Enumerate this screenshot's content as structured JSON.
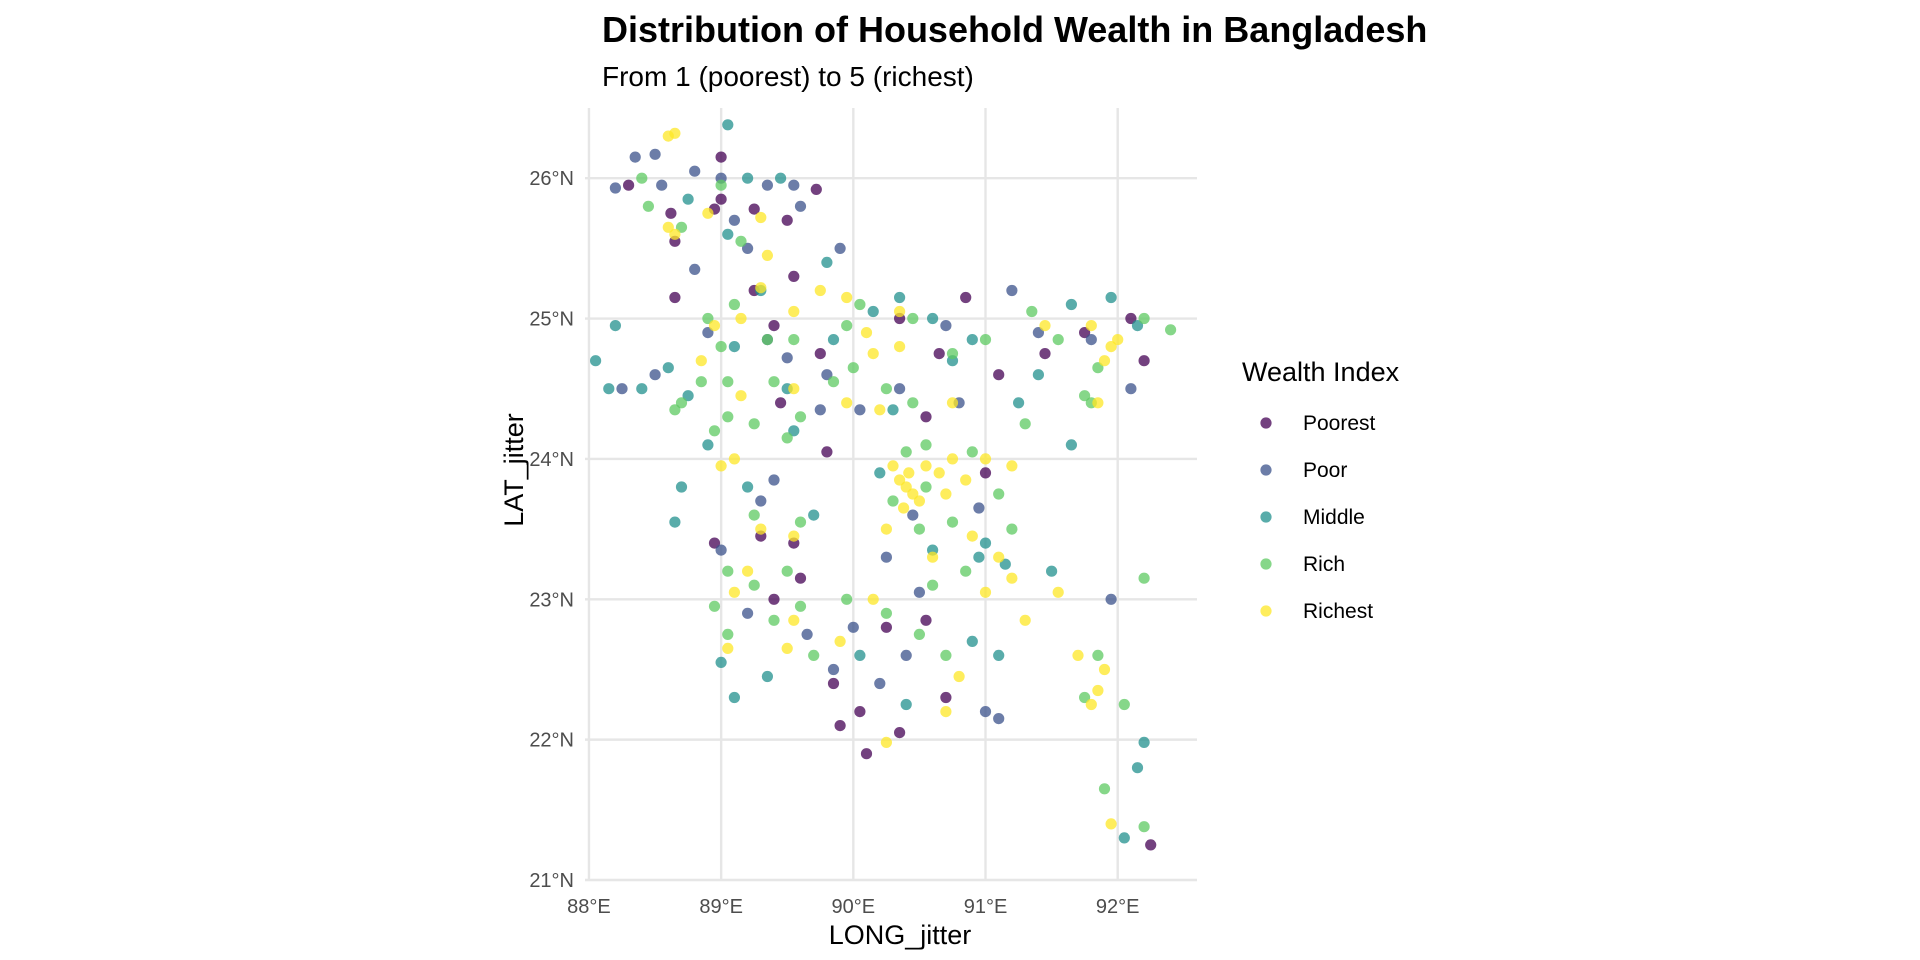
{
  "chart_data": {
    "type": "scatter",
    "title": "Distribution of Household Wealth in Bangladesh",
    "subtitle": "From 1 (poorest) to 5 (richest)",
    "xlabel": "LONG_jitter",
    "ylabel": "LAT_jitter",
    "xlim": [
      87.97,
      92.6
    ],
    "ylim": [
      21.0,
      26.5
    ],
    "x_ticks": [
      88,
      89,
      90,
      91,
      92
    ],
    "x_tick_labels": [
      "88°E",
      "89°E",
      "90°E",
      "91°E",
      "92°E"
    ],
    "y_ticks": [
      21,
      22,
      23,
      24,
      25,
      26
    ],
    "y_tick_labels": [
      "21°N",
      "22°N",
      "23°N",
      "24°N",
      "25°N",
      "26°N"
    ],
    "grid": true,
    "legend_title": "Wealth Index",
    "legend_position": "right",
    "series": [
      {
        "name": "Poorest",
        "color": "#440154",
        "points": [
          [
            88.3,
            25.95
          ],
          [
            88.62,
            25.75
          ],
          [
            88.65,
            25.55
          ],
          [
            88.65,
            25.15
          ],
          [
            88.95,
            25.78
          ],
          [
            89.0,
            26.15
          ],
          [
            89.0,
            25.85
          ],
          [
            89.25,
            25.78
          ],
          [
            89.5,
            25.7
          ],
          [
            89.72,
            25.92
          ],
          [
            89.25,
            25.2
          ],
          [
            89.4,
            24.95
          ],
          [
            89.45,
            24.4
          ],
          [
            89.75,
            24.75
          ],
          [
            89.6,
            23.15
          ],
          [
            89.85,
            22.4
          ],
          [
            89.9,
            22.1
          ],
          [
            90.05,
            22.2
          ],
          [
            90.1,
            21.9
          ],
          [
            90.35,
            22.05
          ],
          [
            90.25,
            22.8
          ],
          [
            90.55,
            22.85
          ],
          [
            90.7,
            22.3
          ],
          [
            90.55,
            24.3
          ],
          [
            90.65,
            24.75
          ],
          [
            90.85,
            25.15
          ],
          [
            91.1,
            24.6
          ],
          [
            91.45,
            24.75
          ],
          [
            91.75,
            24.9
          ],
          [
            92.2,
            24.7
          ],
          [
            92.1,
            25.0
          ],
          [
            91.0,
            23.9
          ],
          [
            90.35,
            25.0
          ],
          [
            89.8,
            24.05
          ],
          [
            89.3,
            23.45
          ],
          [
            89.4,
            23.0
          ],
          [
            88.95,
            23.4
          ],
          [
            92.25,
            21.25
          ],
          [
            89.55,
            23.4
          ],
          [
            89.55,
            25.3
          ]
        ]
      },
      {
        "name": "Poor",
        "color": "#3b528b",
        "points": [
          [
            88.2,
            25.93
          ],
          [
            88.35,
            26.15
          ],
          [
            88.5,
            26.17
          ],
          [
            88.55,
            25.95
          ],
          [
            88.8,
            26.05
          ],
          [
            89.0,
            26.0
          ],
          [
            89.1,
            25.7
          ],
          [
            89.35,
            25.95
          ],
          [
            89.55,
            25.95
          ],
          [
            89.6,
            25.8
          ],
          [
            89.2,
            25.5
          ],
          [
            88.8,
            25.35
          ],
          [
            88.9,
            24.9
          ],
          [
            89.5,
            24.72
          ],
          [
            89.8,
            24.6
          ],
          [
            89.75,
            24.35
          ],
          [
            89.4,
            23.85
          ],
          [
            89.3,
            23.7
          ],
          [
            89.0,
            23.35
          ],
          [
            89.2,
            22.9
          ],
          [
            89.65,
            22.75
          ],
          [
            89.85,
            22.5
          ],
          [
            90.0,
            22.8
          ],
          [
            90.2,
            22.4
          ],
          [
            90.4,
            22.6
          ],
          [
            90.5,
            23.05
          ],
          [
            90.45,
            23.6
          ],
          [
            90.05,
            24.35
          ],
          [
            90.35,
            24.5
          ],
          [
            90.8,
            24.4
          ],
          [
            91.2,
            25.2
          ],
          [
            91.4,
            24.9
          ],
          [
            92.1,
            24.5
          ],
          [
            91.8,
            24.85
          ],
          [
            91.95,
            23.0
          ],
          [
            91.0,
            22.2
          ],
          [
            91.1,
            22.15
          ],
          [
            88.25,
            24.5
          ],
          [
            89.9,
            25.5
          ],
          [
            90.7,
            24.95
          ],
          [
            88.5,
            24.6
          ],
          [
            89.35,
            24.85
          ],
          [
            90.95,
            23.65
          ],
          [
            90.25,
            23.3
          ]
        ]
      },
      {
        "name": "Middle",
        "color": "#21908d",
        "points": [
          [
            88.05,
            24.7
          ],
          [
            88.2,
            24.95
          ],
          [
            88.15,
            24.5
          ],
          [
            88.4,
            24.5
          ],
          [
            88.6,
            24.65
          ],
          [
            88.75,
            24.45
          ],
          [
            89.05,
            26.38
          ],
          [
            89.2,
            26.0
          ],
          [
            89.45,
            26.0
          ],
          [
            88.75,
            25.85
          ],
          [
            89.05,
            25.6
          ],
          [
            89.8,
            25.4
          ],
          [
            89.3,
            25.2
          ],
          [
            89.1,
            24.8
          ],
          [
            89.5,
            24.5
          ],
          [
            89.85,
            24.85
          ],
          [
            90.15,
            25.05
          ],
          [
            90.35,
            25.15
          ],
          [
            90.75,
            24.7
          ],
          [
            90.9,
            24.85
          ],
          [
            91.4,
            24.6
          ],
          [
            91.65,
            25.1
          ],
          [
            91.95,
            25.15
          ],
          [
            92.15,
            24.95
          ],
          [
            91.65,
            24.1
          ],
          [
            91.0,
            23.4
          ],
          [
            90.95,
            23.3
          ],
          [
            91.15,
            23.25
          ],
          [
            91.5,
            23.2
          ],
          [
            90.6,
            23.35
          ],
          [
            90.2,
            23.9
          ],
          [
            89.7,
            23.6
          ],
          [
            89.2,
            23.8
          ],
          [
            88.7,
            23.8
          ],
          [
            88.65,
            23.55
          ],
          [
            89.0,
            22.55
          ],
          [
            89.1,
            22.3
          ],
          [
            89.35,
            22.45
          ],
          [
            90.05,
            22.6
          ],
          [
            90.4,
            22.25
          ],
          [
            90.9,
            22.7
          ],
          [
            91.1,
            22.6
          ],
          [
            92.15,
            21.8
          ],
          [
            92.05,
            21.3
          ],
          [
            92.2,
            21.98
          ],
          [
            90.3,
            24.35
          ],
          [
            89.55,
            24.2
          ],
          [
            88.9,
            24.1
          ],
          [
            90.6,
            25.0
          ],
          [
            91.25,
            24.4
          ]
        ]
      },
      {
        "name": "Rich",
        "color": "#5ec962",
        "points": [
          [
            88.4,
            26.0
          ],
          [
            88.45,
            25.8
          ],
          [
            88.7,
            25.65
          ],
          [
            89.0,
            25.95
          ],
          [
            89.15,
            25.55
          ],
          [
            88.65,
            24.35
          ],
          [
            88.85,
            24.55
          ],
          [
            89.0,
            24.8
          ],
          [
            88.9,
            25.0
          ],
          [
            89.1,
            25.1
          ],
          [
            89.55,
            24.85
          ],
          [
            89.35,
            24.85
          ],
          [
            89.4,
            24.55
          ],
          [
            89.5,
            24.15
          ],
          [
            89.25,
            24.25
          ],
          [
            89.05,
            24.3
          ],
          [
            88.95,
            24.2
          ],
          [
            89.25,
            23.6
          ],
          [
            89.6,
            23.55
          ],
          [
            89.5,
            23.2
          ],
          [
            89.25,
            23.1
          ],
          [
            89.05,
            23.2
          ],
          [
            88.95,
            22.95
          ],
          [
            89.05,
            22.75
          ],
          [
            89.4,
            22.85
          ],
          [
            89.6,
            22.95
          ],
          [
            89.7,
            22.6
          ],
          [
            89.95,
            23.0
          ],
          [
            90.25,
            22.9
          ],
          [
            90.5,
            22.75
          ],
          [
            90.7,
            22.6
          ],
          [
            90.6,
            23.1
          ],
          [
            90.85,
            23.2
          ],
          [
            90.75,
            23.55
          ],
          [
            90.5,
            23.5
          ],
          [
            90.4,
            24.05
          ],
          [
            90.55,
            24.1
          ],
          [
            90.9,
            24.05
          ],
          [
            90.45,
            24.4
          ],
          [
            90.25,
            24.5
          ],
          [
            89.95,
            24.95
          ],
          [
            90.45,
            25.0
          ],
          [
            91.0,
            24.85
          ],
          [
            91.35,
            25.05
          ],
          [
            91.55,
            24.85
          ],
          [
            91.75,
            24.45
          ],
          [
            91.85,
            24.65
          ],
          [
            92.2,
            25.0
          ],
          [
            92.4,
            24.92
          ],
          [
            91.8,
            24.4
          ],
          [
            91.3,
            24.25
          ],
          [
            91.1,
            23.75
          ],
          [
            91.2,
            23.5
          ],
          [
            90.75,
            24.75
          ],
          [
            89.85,
            24.55
          ],
          [
            89.05,
            24.55
          ],
          [
            91.85,
            22.6
          ],
          [
            92.05,
            22.25
          ],
          [
            91.75,
            22.3
          ],
          [
            91.9,
            21.65
          ],
          [
            92.2,
            21.38
          ],
          [
            92.2,
            23.15
          ],
          [
            90.05,
            25.1
          ],
          [
            90.55,
            23.8
          ],
          [
            90.3,
            23.7
          ],
          [
            88.7,
            24.4
          ],
          [
            90.0,
            24.65
          ],
          [
            89.6,
            24.3
          ]
        ]
      },
      {
        "name": "Richest",
        "color": "#fde725",
        "points": [
          [
            88.6,
            26.3
          ],
          [
            88.65,
            26.32
          ],
          [
            88.65,
            25.6
          ],
          [
            88.9,
            25.75
          ],
          [
            89.3,
            25.72
          ],
          [
            89.35,
            25.45
          ],
          [
            89.3,
            25.22
          ],
          [
            89.15,
            25.0
          ],
          [
            88.85,
            24.7
          ],
          [
            89.15,
            24.45
          ],
          [
            89.55,
            24.5
          ],
          [
            89.95,
            25.15
          ],
          [
            89.75,
            25.2
          ],
          [
            90.1,
            24.9
          ],
          [
            90.15,
            24.75
          ],
          [
            90.35,
            24.8
          ],
          [
            90.2,
            24.35
          ],
          [
            90.75,
            24.4
          ],
          [
            89.1,
            24.0
          ],
          [
            89.0,
            23.95
          ],
          [
            89.3,
            23.5
          ],
          [
            89.55,
            23.45
          ],
          [
            89.2,
            23.2
          ],
          [
            89.1,
            23.05
          ],
          [
            89.05,
            22.65
          ],
          [
            89.5,
            22.65
          ],
          [
            89.55,
            22.85
          ],
          [
            89.9,
            22.7
          ],
          [
            90.15,
            23.0
          ],
          [
            90.25,
            23.5
          ],
          [
            90.3,
            23.95
          ],
          [
            90.35,
            23.85
          ],
          [
            90.4,
            23.8
          ],
          [
            90.45,
            23.75
          ],
          [
            90.5,
            23.7
          ],
          [
            90.38,
            23.65
          ],
          [
            90.42,
            23.9
          ],
          [
            90.55,
            23.95
          ],
          [
            90.65,
            23.9
          ],
          [
            90.75,
            24.0
          ],
          [
            90.7,
            23.75
          ],
          [
            90.85,
            23.85
          ],
          [
            91.0,
            24.0
          ],
          [
            91.2,
            23.95
          ],
          [
            90.9,
            23.45
          ],
          [
            91.1,
            23.3
          ],
          [
            91.2,
            23.15
          ],
          [
            91.0,
            23.05
          ],
          [
            91.3,
            22.85
          ],
          [
            91.55,
            23.05
          ],
          [
            91.7,
            22.6
          ],
          [
            91.9,
            22.5
          ],
          [
            91.85,
            22.35
          ],
          [
            91.8,
            22.25
          ],
          [
            91.95,
            21.4
          ],
          [
            91.45,
            24.95
          ],
          [
            91.8,
            24.95
          ],
          [
            92.0,
            24.85
          ],
          [
            91.95,
            24.8
          ],
          [
            91.9,
            24.7
          ],
          [
            91.85,
            24.4
          ],
          [
            90.25,
            21.98
          ],
          [
            90.7,
            22.2
          ],
          [
            90.8,
            22.45
          ],
          [
            90.35,
            25.05
          ],
          [
            88.95,
            24.95
          ],
          [
            89.55,
            25.05
          ],
          [
            90.6,
            23.3
          ],
          [
            89.95,
            24.4
          ],
          [
            88.6,
            25.65
          ]
        ]
      }
    ]
  }
}
